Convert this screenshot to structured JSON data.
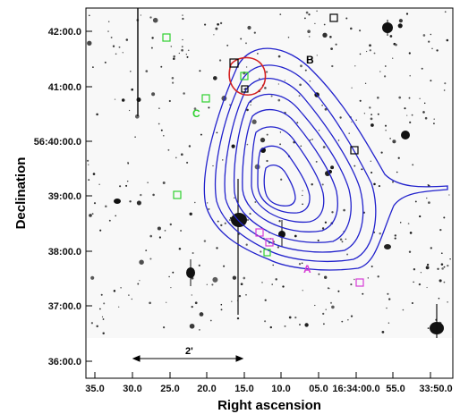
{
  "figure": {
    "xlabel": "Right ascension",
    "ylabel": "Declination",
    "x_ticks": [
      "35.0",
      "30.0",
      "25.0",
      "20.0",
      "15.0",
      "10.0",
      "05.0",
      "16:34:00.0",
      "55.0",
      "33:50.0"
    ],
    "y_ticks": [
      "42:00.0",
      "41:00.0",
      "56:40:00.0",
      "39:00.0",
      "38:00.0",
      "37:00.0",
      "36:00.0"
    ],
    "scale_bar_label": "2'",
    "region_labels": [
      {
        "text": "A",
        "color": "#d63bd6"
      },
      {
        "text": "B",
        "color": "#000000"
      },
      {
        "text": "C",
        "color": "#2fd12f"
      }
    ],
    "colors": {
      "contour": "#2222cc",
      "circle": "#d42020",
      "magenta_box": "#d63bd6",
      "green_box": "#2fd12f",
      "black_box": "#000000"
    }
  }
}
